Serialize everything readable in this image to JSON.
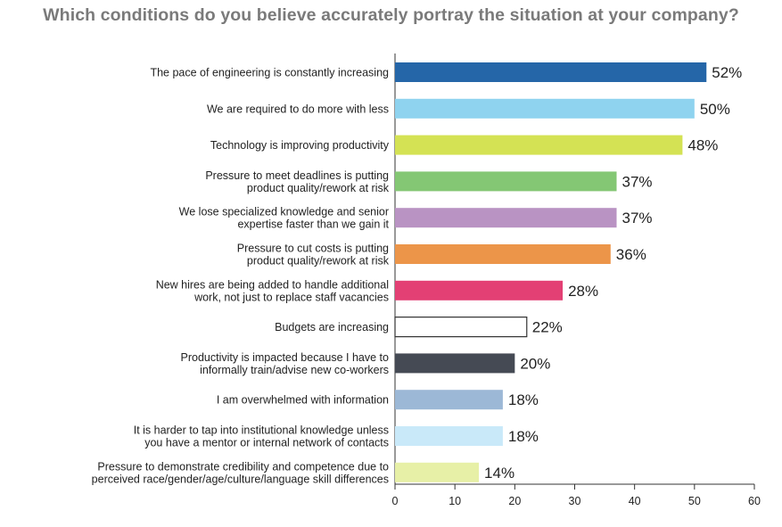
{
  "chart_data": {
    "type": "bar",
    "orientation": "horizontal",
    "title": "Which conditions do you believe accurately portray the situation at your company?",
    "xlabel": "",
    "ylabel": "",
    "xlim": [
      0,
      60
    ],
    "x_ticks": [
      "0",
      "10",
      "20",
      "30",
      "40",
      "50",
      "60"
    ],
    "grid": false,
    "legend": "none",
    "categories": [
      [
        "The pace of engineering is constantly increasing"
      ],
      [
        "We are required to do more with less"
      ],
      [
        "Technology is improving productivity"
      ],
      [
        "Pressure to meet deadlines is putting",
        "product quality/rework at risk"
      ],
      [
        "We lose specialized knowledge and senior",
        "expertise faster than we gain it"
      ],
      [
        "Pressure to cut costs is putting",
        "product quality/rework at risk"
      ],
      [
        "New hires are being added to handle additional",
        "work, not just to replace staff vacancies"
      ],
      [
        "Budgets are increasing"
      ],
      [
        "Productivity is impacted because I have to",
        "informally train/advise new co-workers"
      ],
      [
        "I am overwhelmed with information"
      ],
      [
        "It is harder to tap into institutional knowledge unless",
        "you have a mentor or internal network of contacts"
      ],
      [
        "Pressure to demonstrate credibility and competence due to",
        "perceived race/gender/age/culture/language skill differences"
      ]
    ],
    "values": [
      52,
      50,
      48,
      37,
      37,
      36,
      28,
      22,
      20,
      18,
      18,
      14
    ],
    "value_labels": [
      "52%",
      "50%",
      "48%",
      "37%",
      "37%",
      "36%",
      "28%",
      "22%",
      "20%",
      "18%",
      "18%",
      "14%"
    ],
    "colors": [
      "#2566a8",
      "#8fd3ef",
      "#d4e254",
      "#84c774",
      "#b993c3",
      "#ec9549",
      "#e34074",
      "#ffffff",
      "#454a54",
      "#9cb8d6",
      "#c9e9f9",
      "#e7f0a7"
    ],
    "outlined_bar_color": "#333333"
  }
}
